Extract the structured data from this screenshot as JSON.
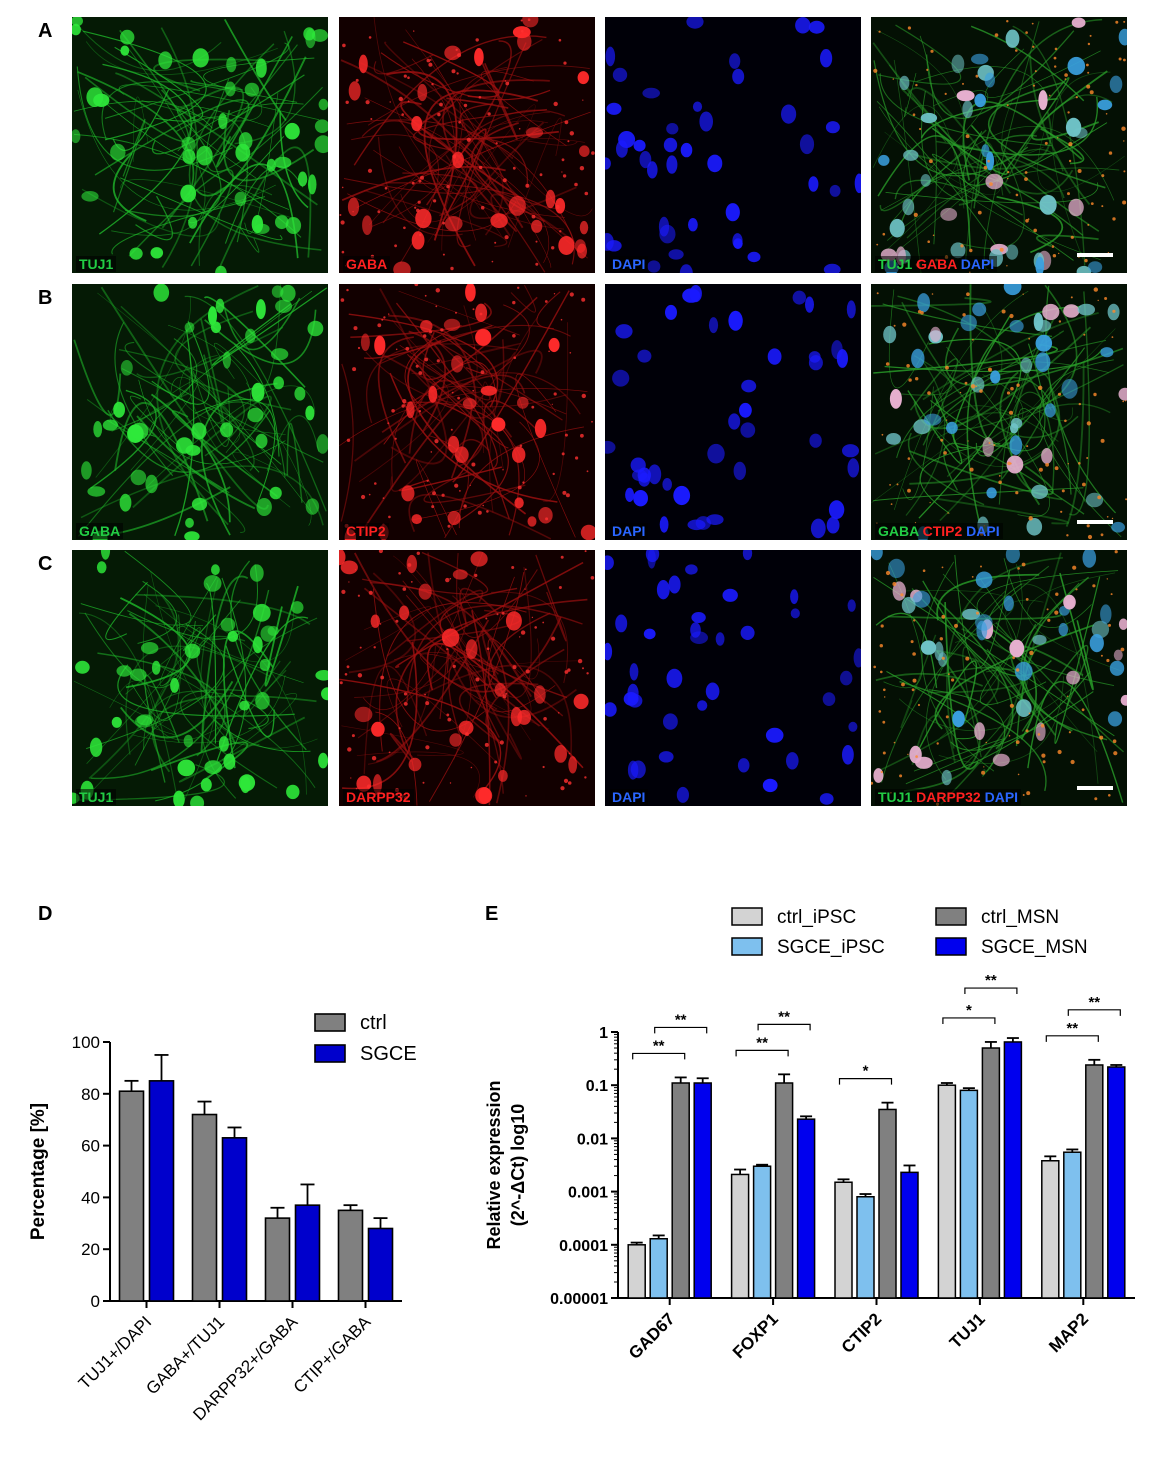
{
  "panels": {
    "a": "A",
    "b": "B",
    "c": "C",
    "d": "D",
    "e": "E"
  },
  "micrographs": [
    [
      {
        "labels": [
          {
            "text": "TUJ1",
            "color": "#22cc44"
          }
        ],
        "channel": "green"
      },
      {
        "labels": [
          {
            "text": "GABA",
            "color": "#ff2020"
          }
        ],
        "channel": "red"
      },
      {
        "labels": [
          {
            "text": "DAPI",
            "color": "#2a66ff"
          }
        ],
        "channel": "blue"
      },
      {
        "labels": [
          {
            "text": "TUJ1 ",
            "color": "#22cc44"
          },
          {
            "text": "GABA ",
            "color": "#ff2020"
          },
          {
            "text": "DAPI",
            "color": "#2a66ff"
          }
        ],
        "channel": "merge",
        "scalebar": true
      }
    ],
    [
      {
        "labels": [
          {
            "text": "GABA",
            "color": "#22cc44"
          }
        ],
        "channel": "green"
      },
      {
        "labels": [
          {
            "text": "CTIP2",
            "color": "#ff2020"
          }
        ],
        "channel": "red"
      },
      {
        "labels": [
          {
            "text": "DAPI",
            "color": "#2a66ff"
          }
        ],
        "channel": "blue"
      },
      {
        "labels": [
          {
            "text": "GABA ",
            "color": "#22cc44"
          },
          {
            "text": "CTIP2 ",
            "color": "#ff2020"
          },
          {
            "text": "DAPI",
            "color": "#2a66ff"
          }
        ],
        "channel": "merge",
        "scalebar": true
      }
    ],
    [
      {
        "labels": [
          {
            "text": "TUJ1",
            "color": "#22cc44"
          }
        ],
        "channel": "green"
      },
      {
        "labels": [
          {
            "text": "DARPP32",
            "color": "#ff2020"
          }
        ],
        "channel": "red"
      },
      {
        "labels": [
          {
            "text": "DAPI",
            "color": "#2a66ff"
          }
        ],
        "channel": "blue"
      },
      {
        "labels": [
          {
            "text": "TUJ1 ",
            "color": "#22cc44"
          },
          {
            "text": "DARPP32 ",
            "color": "#ff2020"
          },
          {
            "text": "DAPI",
            "color": "#2a66ff"
          }
        ],
        "channel": "merge",
        "scalebar": true
      }
    ]
  ],
  "chart_data": [
    {
      "type": "bar",
      "title": "",
      "xlabel": "",
      "ylabel": "Percentage  [%]",
      "ylim": [
        0,
        100
      ],
      "yticks": [
        0,
        20,
        40,
        60,
        80,
        100
      ],
      "categories": [
        "TUJ1+/DAPI",
        "GABA+/TUJ1",
        "DARPP32+/GABA",
        "CTIP+/GABA"
      ],
      "series": [
        {
          "name": "ctrl",
          "color": "#808080",
          "values": [
            81,
            72,
            32,
            35
          ],
          "errors": [
            4,
            5,
            4,
            2
          ]
        },
        {
          "name": "SGCE",
          "color": "#0000cc",
          "values": [
            85,
            63,
            37,
            28
          ],
          "errors": [
            10,
            4,
            8,
            4
          ]
        }
      ],
      "legend": "top-right"
    },
    {
      "type": "bar",
      "title": "",
      "xlabel": "",
      "ylabel_lines": [
        "Relative expression",
        "(2^-ΔCt) log10"
      ],
      "yscale": "log",
      "ylim": [
        1e-05,
        1
      ],
      "yticks": [
        "0.00001",
        "0.0001",
        "0.001",
        "0.01",
        "0.1",
        "1"
      ],
      "categories": [
        "GAD67",
        "FOXP1",
        "CTIP2",
        "TUJ1",
        "MAP2"
      ],
      "series": [
        {
          "name": "ctrl_iPSC",
          "color": "#d3d3d3",
          "values": [
            0.0001,
            0.0021,
            0.0015,
            0.1,
            0.0038
          ],
          "errors": [
            1e-05,
            0.0005,
            0.0002,
            0.01,
            0.0008
          ]
        },
        {
          "name": "SGCE_iPSC",
          "color": "#7ec0ee",
          "values": [
            0.00013,
            0.003,
            0.0008,
            0.08,
            0.0055
          ],
          "errors": [
            2e-05,
            0.0002,
            0.0001,
            0.008,
            0.0007
          ]
        },
        {
          "name": "ctrl_MSN",
          "color": "#808080",
          "values": [
            0.11,
            0.11,
            0.035,
            0.5,
            0.24
          ],
          "errors": [
            0.03,
            0.05,
            0.012,
            0.15,
            0.06
          ]
        },
        {
          "name": "SGCE_MSN",
          "color": "#0000ee",
          "values": [
            0.11,
            0.023,
            0.0023,
            0.65,
            0.22
          ],
          "errors": [
            0.025,
            0.003,
            0.0008,
            0.12,
            0.02
          ]
        }
      ],
      "significance": [
        {
          "category": 0,
          "from": 0,
          "to": 2,
          "level": 1,
          "label": "**"
        },
        {
          "category": 0,
          "from": 1,
          "to": 3,
          "level": 2,
          "label": "**"
        },
        {
          "category": 1,
          "from": 0,
          "to": 2,
          "level": 1,
          "label": "**"
        },
        {
          "category": 1,
          "from": 1,
          "to": 3,
          "level": 2,
          "label": "**"
        },
        {
          "category": 2,
          "from": 0,
          "to": 2,
          "level": 1,
          "label": "*"
        },
        {
          "category": 3,
          "from": 0,
          "to": 2,
          "level": 1,
          "label": "*"
        },
        {
          "category": 3,
          "from": 1,
          "to": 3,
          "level": 2,
          "label": "**"
        },
        {
          "category": 4,
          "from": 0,
          "to": 2,
          "level": 1,
          "label": "**"
        },
        {
          "category": 4,
          "from": 1,
          "to": 3,
          "level": 2,
          "label": "**"
        }
      ],
      "legend": "top"
    }
  ]
}
